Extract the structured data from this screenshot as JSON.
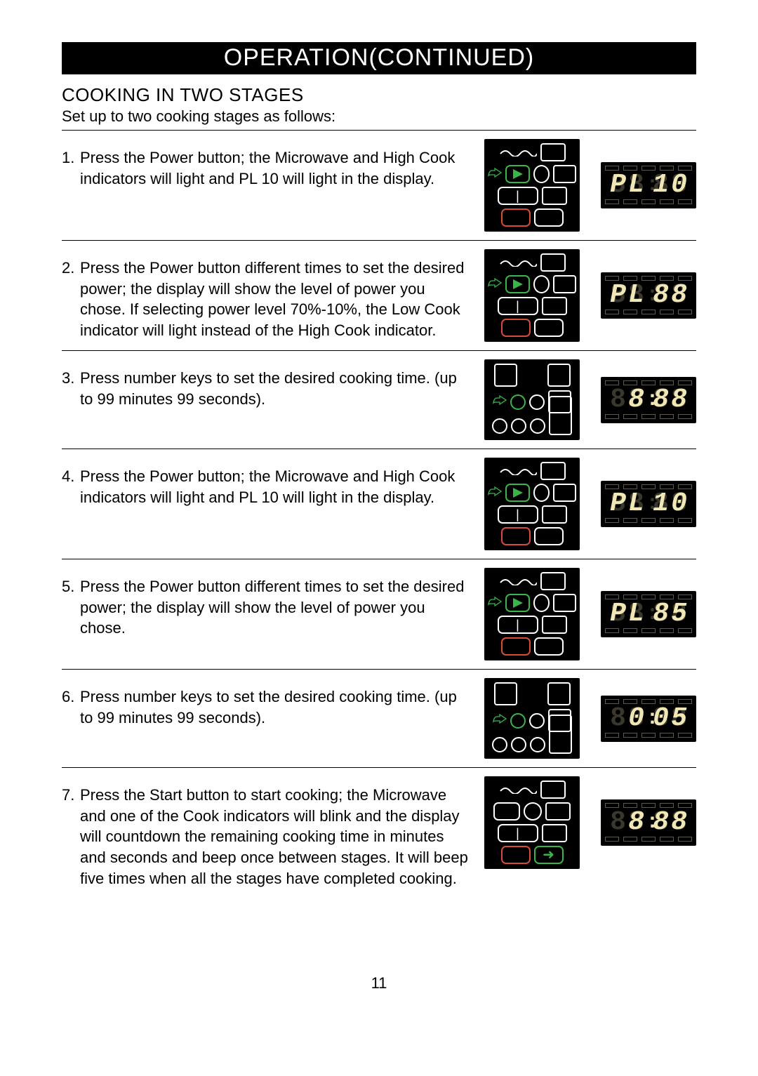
{
  "header": {
    "title": "OPERATION(CONTINUED)"
  },
  "section": {
    "heading": "COOKING IN TWO STAGES",
    "intro": "Set up to two cooking stages as follows:"
  },
  "steps": [
    {
      "num": "1.",
      "text_1": "Press the Power button; the Microwave and High Cook indicators will light and",
      "highlight": "PL 10",
      "text_2": "will light in the display.",
      "panel": {
        "variant": "power",
        "green_pos": "top",
        "red_pos": "bottom-left"
      },
      "display": {
        "digits": [
          "P",
          "L",
          " ",
          "1",
          "0"
        ],
        "lit": [
          true,
          true,
          false,
          true,
          true
        ],
        "colon_lit": false
      }
    },
    {
      "num": "2.",
      "text_1": "Press the Power button different times to set the desired power; the display will show the level of power you chose. If selecting power level 70%-10%, the Low Cook indicator will light instead of the High Cook indicator.",
      "highlight": "",
      "text_2": "",
      "panel": {
        "variant": "power",
        "green_pos": "top",
        "red_pos": "bottom-left"
      },
      "display": {
        "digits": [
          "P",
          "L",
          " ",
          "8",
          "8"
        ],
        "lit": [
          true,
          true,
          false,
          true,
          true
        ],
        "colon_lit": false
      }
    },
    {
      "num": "3.",
      "text_1": "Press number keys to set the desired cooking time. (up to 99 minutes 99 seconds).",
      "highlight": "",
      "text_2": "",
      "panel": {
        "variant": "keypad",
        "green_pos": "mid",
        "red_pos": "none"
      },
      "display": {
        "digits": [
          "8",
          "8",
          " ",
          "8",
          "8"
        ],
        "lit": [
          false,
          true,
          false,
          true,
          true
        ],
        "colon_lit": true
      }
    },
    {
      "num": "4.",
      "text_1": "Press the Power button; the Microwave and High Cook indicators will light and",
      "highlight": "PL 10",
      "text_2": "will light in the display.",
      "panel": {
        "variant": "power",
        "green_pos": "top",
        "red_pos": "bottom-left"
      },
      "display": {
        "digits": [
          "P",
          "L",
          " ",
          "1",
          "0"
        ],
        "lit": [
          true,
          true,
          false,
          true,
          true
        ],
        "colon_lit": false
      }
    },
    {
      "num": "5.",
      "text_1": "Press the Power button different times to set the desired power; the display will show the level of power you chose.",
      "highlight": "",
      "text_2": "",
      "panel": {
        "variant": "power",
        "green_pos": "top",
        "red_pos": "bottom-left"
      },
      "display": {
        "digits": [
          "P",
          "L",
          " ",
          "8",
          "5"
        ],
        "lit": [
          true,
          true,
          false,
          true,
          true
        ],
        "colon_lit": false
      }
    },
    {
      "num": "6.",
      "text_1": "Press number keys to set the desired cooking time. (up to 99 minutes 99 seconds).",
      "highlight": "",
      "text_2": "",
      "panel": {
        "variant": "keypad",
        "green_pos": "mid",
        "red_pos": "none"
      },
      "display": {
        "digits": [
          "8",
          "0",
          " ",
          "0",
          "5"
        ],
        "lit": [
          false,
          true,
          false,
          true,
          true
        ],
        "colon_lit": true
      }
    },
    {
      "num": "7.",
      "text_1": "Press the Start button to start cooking; the Microwave and one of the Cook indicators will blink and the display will countdown the remaining cooking time in minutes and seconds and beep once between stages. It will beep five times when all the stages have completed cooking.",
      "highlight": "",
      "text_2": "",
      "panel": {
        "variant": "start",
        "green_pos": "bottom-right",
        "red_pos": "bottom-left"
      },
      "display": {
        "digits": [
          "8",
          "8",
          " ",
          "8",
          "8"
        ],
        "lit": [
          false,
          true,
          false,
          true,
          true
        ],
        "colon_lit": true
      }
    }
  ],
  "page_number": "11",
  "colors": {
    "text": "#000000",
    "panel_bg": "#000000",
    "outline": "#ffffff",
    "green": "#3ab54a",
    "red": "#d94a3a",
    "seg_lit": "#f1e7b5",
    "seg_ghost": "#3a382c",
    "ind_border": "#5d5a50"
  }
}
